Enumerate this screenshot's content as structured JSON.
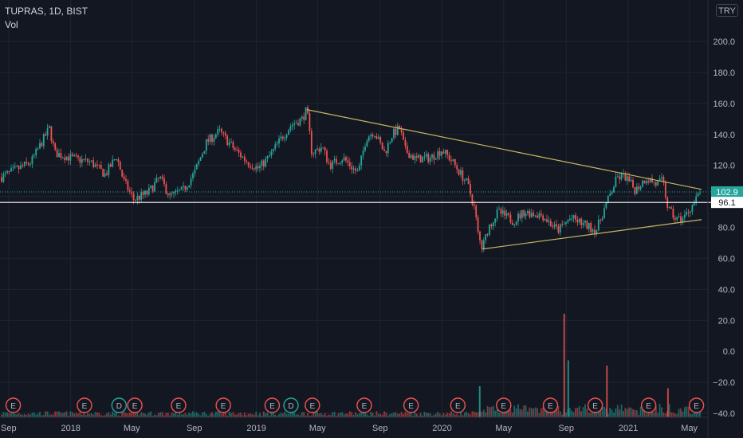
{
  "header": {
    "symbol_line": "TUPRAS, 1D, BIST",
    "volume_label": "Vol"
  },
  "currency_button": "TRY",
  "colors": {
    "background": "#131722",
    "grid": "#1f2430",
    "text": "#b2b5be",
    "up": "#26a69a",
    "down": "#ef5350",
    "trendline": "#c8b560",
    "hline": "#ffffff",
    "price_tag": "#26a69a",
    "event": "#ef5350",
    "dividend": "#26a69a"
  },
  "chart_data": {
    "type": "candlestick",
    "y_axis": {
      "min": -40,
      "max": 200,
      "ticks": [
        "200.0",
        "180.0",
        "160.0",
        "140.0",
        "120.0",
        "100.0",
        "80.0",
        "60.0",
        "40.0",
        "20.0",
        "0.0",
        "−20.0",
        "−40.0"
      ]
    },
    "x_axis_labels": [
      "Sep",
      "2018",
      "May",
      "Sep",
      "2019",
      "May",
      "Sep",
      "2020",
      "May",
      "Sep",
      "2021",
      "May"
    ],
    "x_range": [
      "2017-08-15",
      "2021-05-25"
    ],
    "x_label_dates": [
      "2017-09-01",
      "2018-01-01",
      "2018-05-01",
      "2018-09-01",
      "2019-01-01",
      "2019-05-01",
      "2019-09-01",
      "2020-01-01",
      "2020-05-01",
      "2020-09-01",
      "2021-01-01",
      "2021-05-01"
    ],
    "price_path": [
      [
        "2017-08-15",
        112
      ],
      [
        "2017-10-15",
        122
      ],
      [
        "2017-11-20",
        144
      ],
      [
        "2017-12-01",
        128
      ],
      [
        "2018-01-10",
        124
      ],
      [
        "2018-02-10",
        122
      ],
      [
        "2018-03-10",
        114
      ],
      [
        "2018-04-01",
        126
      ],
      [
        "2018-04-15",
        110
      ],
      [
        "2018-05-05",
        98
      ],
      [
        "2018-06-01",
        102
      ],
      [
        "2018-06-25",
        112
      ],
      [
        "2018-07-15",
        100
      ],
      [
        "2018-08-10",
        104
      ],
      [
        "2018-09-01",
        115
      ],
      [
        "2018-09-25",
        135
      ],
      [
        "2018-10-20",
        142
      ],
      [
        "2018-11-20",
        130
      ],
      [
        "2018-12-15",
        122
      ],
      [
        "2019-01-05",
        118
      ],
      [
        "2019-01-25",
        125
      ],
      [
        "2019-02-20",
        138
      ],
      [
        "2019-03-10",
        146
      ],
      [
        "2019-04-01",
        150
      ],
      [
        "2019-04-10",
        156
      ],
      [
        "2019-04-20",
        128
      ],
      [
        "2019-05-10",
        132
      ],
      [
        "2019-05-25",
        120
      ],
      [
        "2019-06-20",
        125
      ],
      [
        "2019-07-10",
        118
      ],
      [
        "2019-07-20",
        115
      ],
      [
        "2019-08-05",
        138
      ],
      [
        "2019-08-20",
        142
      ],
      [
        "2019-09-10",
        128
      ],
      [
        "2019-09-25",
        140
      ],
      [
        "2019-10-10",
        144
      ],
      [
        "2019-10-20",
        130
      ],
      [
        "2019-11-10",
        124
      ],
      [
        "2019-12-10",
        125
      ],
      [
        "2020-01-01",
        130
      ],
      [
        "2020-01-20",
        123
      ],
      [
        "2020-02-20",
        108
      ],
      [
        "2020-03-05",
        92
      ],
      [
        "2020-03-12",
        75
      ],
      [
        "2020-03-20",
        66
      ],
      [
        "2020-04-01",
        80
      ],
      [
        "2020-04-20",
        90
      ],
      [
        "2020-05-20",
        84
      ],
      [
        "2020-06-10",
        90
      ],
      [
        "2020-07-15",
        88
      ],
      [
        "2020-08-15",
        78
      ],
      [
        "2020-09-10",
        86
      ],
      [
        "2020-10-05",
        82
      ],
      [
        "2020-10-30",
        78
      ],
      [
        "2020-11-15",
        92
      ],
      [
        "2020-12-10",
        112
      ],
      [
        "2020-12-25",
        113
      ],
      [
        "2021-01-15",
        104
      ],
      [
        "2021-02-05",
        112
      ],
      [
        "2021-02-25",
        108
      ],
      [
        "2021-03-10",
        110
      ],
      [
        "2021-03-20",
        92
      ],
      [
        "2021-04-05",
        85
      ],
      [
        "2021-04-20",
        86
      ],
      [
        "2021-05-10",
        96
      ],
      [
        "2021-05-25",
        103
      ]
    ],
    "trendlines": [
      {
        "from": [
          "2019-04-10",
          156
        ],
        "to": [
          "2021-05-25",
          104.5
        ]
      },
      {
        "from": [
          "2020-03-20",
          66
        ],
        "to": [
          "2021-05-25",
          85
        ]
      }
    ],
    "horizontal_line": {
      "value": 96.1,
      "label": "96.1"
    },
    "last_price": {
      "value": 102.9,
      "label": "102.9"
    },
    "events": [
      {
        "date": "2017-09-10",
        "label": "E"
      },
      {
        "date": "2018-01-28",
        "label": "E"
      },
      {
        "date": "2018-04-06",
        "label": "D"
      },
      {
        "date": "2018-05-07",
        "label": "E"
      },
      {
        "date": "2018-08-01",
        "label": "E"
      },
      {
        "date": "2018-10-28",
        "label": "E"
      },
      {
        "date": "2019-02-01",
        "label": "E"
      },
      {
        "date": "2019-03-10",
        "label": "D"
      },
      {
        "date": "2019-04-21",
        "label": "E"
      },
      {
        "date": "2019-08-01",
        "label": "E"
      },
      {
        "date": "2019-11-01",
        "label": "E"
      },
      {
        "date": "2020-02-01",
        "label": "E"
      },
      {
        "date": "2020-05-01",
        "label": "E"
      },
      {
        "date": "2020-08-01",
        "label": "E"
      },
      {
        "date": "2020-10-28",
        "label": "E"
      },
      {
        "date": "2021-02-10",
        "label": "E"
      },
      {
        "date": "2021-05-15",
        "label": "E"
      }
    ],
    "volume_spikes": [
      {
        "date": "2020-08-28",
        "value": 1.0
      },
      {
        "date": "2020-09-05",
        "value": 0.55
      },
      {
        "date": "2020-11-20",
        "value": 0.5
      },
      {
        "date": "2020-03-15",
        "value": 0.3
      },
      {
        "date": "2021-03-20",
        "value": 0.28
      }
    ],
    "grid": true
  }
}
